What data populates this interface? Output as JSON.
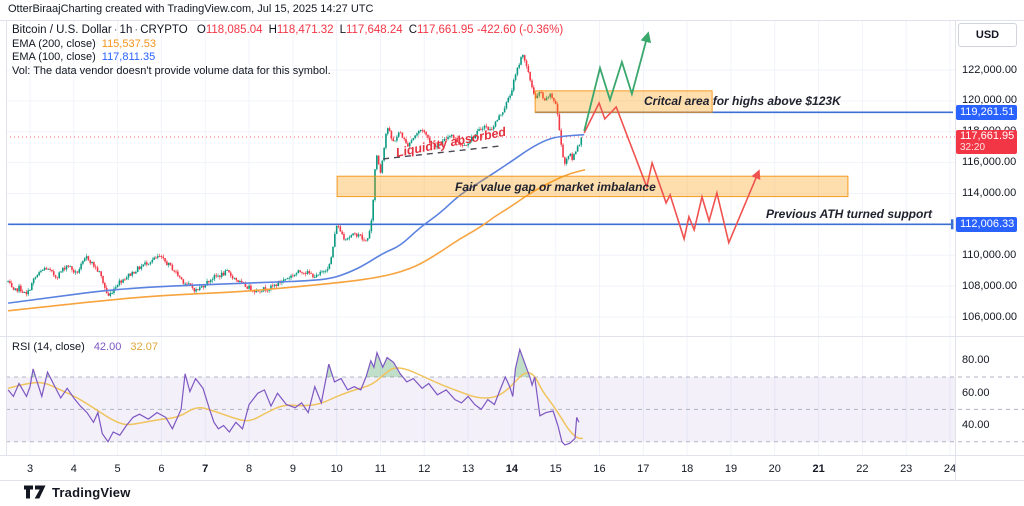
{
  "header": {
    "credit": "OtterBiraajCharting created with TradingView.com, Jul 15, 2025 14:27 UTC"
  },
  "toolbar": {
    "currency_button": "USD"
  },
  "legend": {
    "symbol": "Bitcoin / U.S. Dollar",
    "interval": "1h",
    "exchange": "CRYPTO",
    "o_label": "O",
    "o": "118,085.04",
    "h_label": "H",
    "h": "118,471.32",
    "l_label": "L",
    "l": "117,648.24",
    "c_label": "C",
    "c": "117,661.95",
    "change": "-422.60 (-0.36%)",
    "ema200_label": "EMA (200, close)",
    "ema200_value": "115,537.53",
    "ema100_label": "EMA (100, close)",
    "ema100_value": "117,811.35",
    "vol_note": "Vol: The data vendor doesn't provide volume data for this symbol."
  },
  "annotations": {
    "critical_area": "Critcal area for highs above $123K",
    "liquidity": "Liquidity absorbed",
    "fvg": "Fair value gap or market imbalance",
    "prev_ath": "Previous ATH turned support"
  },
  "price_scale": {
    "labels": [
      {
        "text": "122,000.00",
        "price": 122000
      },
      {
        "text": "120,000.00",
        "price": 120000
      },
      {
        "text": "118,000.00",
        "price": 118000
      },
      {
        "text": "116,000.00",
        "price": 116000
      },
      {
        "text": "114,000.00",
        "price": 114000
      },
      {
        "text": "112,000.00",
        "price": 112000
      },
      {
        "text": "110,000.00",
        "price": 110000
      },
      {
        "text": "108,000.00",
        "price": 108000
      },
      {
        "text": "106,000.00",
        "price": 106000
      }
    ],
    "badge_level_high": {
      "text": "119,261.51",
      "price": 119261.51
    },
    "badge_last": {
      "text": "117,661.95",
      "price": 117661.95,
      "countdown": "32:20"
    },
    "badge_level_low": {
      "text": "112,006.33",
      "price": 112006.33
    }
  },
  "rsi_panel": {
    "label": "RSI (14, close)",
    "value": "42.00",
    "ma_value": "32.07",
    "scale": [
      {
        "text": "80.00",
        "v": 80
      },
      {
        "text": "60.00",
        "v": 60
      },
      {
        "text": "40.00",
        "v": 40
      }
    ],
    "bands": [
      70,
      50,
      30
    ],
    "band_fill_range": [
      30,
      70
    ]
  },
  "time_axis": {
    "labels": [
      {
        "text": "3"
      },
      {
        "text": "4"
      },
      {
        "text": "5"
      },
      {
        "text": "6"
      },
      {
        "text": "7",
        "bold": true
      },
      {
        "text": "8"
      },
      {
        "text": "9"
      },
      {
        "text": "10"
      },
      {
        "text": "11"
      },
      {
        "text": "12"
      },
      {
        "text": "13"
      },
      {
        "text": "14",
        "bold": true
      },
      {
        "text": "15"
      },
      {
        "text": "16"
      },
      {
        "text": "17"
      },
      {
        "text": "18"
      },
      {
        "text": "19"
      },
      {
        "text": "20"
      },
      {
        "text": "21",
        "bold": true
      },
      {
        "text": "22"
      },
      {
        "text": "23"
      },
      {
        "text": "24"
      }
    ],
    "first_day": 3
  },
  "footer": {
    "brand": "TradingView"
  },
  "colors": {
    "up": "#089981",
    "down": "#f23645",
    "ema100": "#5b82e0",
    "ema200": "#f7a33e",
    "rsi": "#7e57c2",
    "rsi_ma": "#f0c35c",
    "rsi_band_fill": "rgba(126,87,194,0.09)",
    "rsi_band_line": "#b3b6c4",
    "rsi_over_fill": "rgba(76,160,100,0.35)",
    "level_blue": "#3b6fd2",
    "badge_blue": "#2962ff",
    "badge_red": "#f23645",
    "box_fill": "rgba(255,152,0,0.32)",
    "box_border": "rgba(245,146,15,0.9)",
    "proj_green": "#3aa76d",
    "proj_red": "#ef5350",
    "grid": "#f0f3fa",
    "trend_dash": "#4a4a55",
    "last_price_line": "#f23645"
  },
  "chart_data": {
    "type": "candlestick",
    "title": "Bitcoin / U.S. Dollar 1h CRYPTO",
    "x_axis": {
      "unit": "day of July 2025",
      "days": [
        3,
        4,
        5,
        6,
        7,
        8,
        9,
        10,
        11,
        12,
        13,
        14,
        15,
        16,
        17,
        18,
        19,
        20,
        21,
        22,
        23,
        24
      ]
    },
    "y_axis": {
      "unit": "USD",
      "range": [
        105200,
        123800
      ],
      "grid_step": 2000
    },
    "ohlc_last": {
      "open": 118085.04,
      "high": 118471.32,
      "low": 117648.24,
      "close": 117661.95,
      "change": -422.6,
      "change_pct": -0.36
    },
    "price_anchors": [
      [
        2.5,
        108300
      ],
      [
        2.62,
        107600
      ],
      [
        2.75,
        107900
      ],
      [
        2.92,
        107400
      ],
      [
        3.1,
        108500
      ],
      [
        3.35,
        109200
      ],
      [
        3.6,
        108600
      ],
      [
        3.85,
        109400
      ],
      [
        4.05,
        108800
      ],
      [
        4.3,
        109900
      ],
      [
        4.6,
        108800
      ],
      [
        4.78,
        107300
      ],
      [
        5.0,
        108200
      ],
      [
        5.3,
        108800
      ],
      [
        5.65,
        109500
      ],
      [
        5.95,
        109900
      ],
      [
        6.2,
        109300
      ],
      [
        6.5,
        108300
      ],
      [
        6.8,
        107700
      ],
      [
        7.15,
        108500
      ],
      [
        7.5,
        108900
      ],
      [
        7.85,
        108100
      ],
      [
        8.15,
        107700
      ],
      [
        8.5,
        107900
      ],
      [
        8.85,
        108500
      ],
      [
        9.2,
        109000
      ],
      [
        9.55,
        108600
      ],
      [
        9.85,
        109400
      ],
      [
        10.0,
        112000
      ],
      [
        10.18,
        111100
      ],
      [
        10.5,
        111400
      ],
      [
        10.65,
        110800
      ],
      [
        10.78,
        111700
      ],
      [
        10.84,
        113900
      ],
      [
        10.9,
        116700
      ],
      [
        11.0,
        115400
      ],
      [
        11.15,
        118400
      ],
      [
        11.28,
        117300
      ],
      [
        11.45,
        118000
      ],
      [
        11.6,
        117100
      ],
      [
        11.8,
        117800
      ],
      [
        11.95,
        118200
      ],
      [
        12.1,
        117500
      ],
      [
        12.3,
        117000
      ],
      [
        12.45,
        117400
      ],
      [
        12.6,
        117900
      ],
      [
        12.75,
        117400
      ],
      [
        12.9,
        117100
      ],
      [
        13.05,
        117500
      ],
      [
        13.2,
        117900
      ],
      [
        13.35,
        118400
      ],
      [
        13.5,
        118100
      ],
      [
        13.65,
        118700
      ],
      [
        13.8,
        119400
      ],
      [
        13.95,
        120300
      ],
      [
        14.05,
        121300
      ],
      [
        14.15,
        122300
      ],
      [
        14.25,
        123100
      ],
      [
        14.35,
        122000
      ],
      [
        14.45,
        121000
      ],
      [
        14.55,
        120100
      ],
      [
        14.65,
        120600
      ],
      [
        14.75,
        119900
      ],
      [
        14.85,
        120400
      ],
      [
        14.95,
        120100
      ],
      [
        15.02,
        119700
      ],
      [
        15.1,
        117600
      ],
      [
        15.2,
        115900
      ],
      [
        15.3,
        116600
      ],
      [
        15.38,
        116200
      ],
      [
        15.48,
        117000
      ],
      [
        15.58,
        117500
      ],
      [
        15.62,
        117660
      ]
    ],
    "ema100_points": [
      [
        2.5,
        106900
      ],
      [
        3.6,
        107300
      ],
      [
        4.5,
        107650
      ],
      [
        5.5,
        107900
      ],
      [
        7.0,
        108100
      ],
      [
        8.5,
        108250
      ],
      [
        9.4,
        108350
      ],
      [
        9.9,
        108500
      ],
      [
        10.3,
        108900
      ],
      [
        10.65,
        109400
      ],
      [
        11.1,
        110200
      ],
      [
        11.45,
        110600
      ],
      [
        11.9,
        111800
      ],
      [
        12.35,
        112700
      ],
      [
        12.8,
        113900
      ],
      [
        13.3,
        114800
      ],
      [
        13.95,
        116000
      ],
      [
        14.4,
        116900
      ],
      [
        14.8,
        117500
      ],
      [
        15.1,
        117700
      ],
      [
        15.65,
        117811
      ]
    ],
    "ema200_points": [
      [
        2.5,
        106400
      ],
      [
        4.6,
        107050
      ],
      [
        6.0,
        107400
      ],
      [
        7.6,
        107600
      ],
      [
        8.9,
        107900
      ],
      [
        10.3,
        108300
      ],
      [
        11.0,
        108600
      ],
      [
        11.45,
        108900
      ],
      [
        11.9,
        109400
      ],
      [
        12.36,
        110200
      ],
      [
        12.8,
        111050
      ],
      [
        13.27,
        111800
      ],
      [
        13.6,
        112500
      ],
      [
        13.95,
        113100
      ],
      [
        14.3,
        113800
      ],
      [
        14.65,
        114400
      ],
      [
        15.0,
        114900
      ],
      [
        15.33,
        115300
      ],
      [
        15.67,
        115537
      ]
    ],
    "levels": [
      {
        "name": "resistance_119261",
        "price": 119261.51,
        "day_range": [
          14.53,
          24.11
        ],
        "style": "solid"
      },
      {
        "name": "prev_ath_support_112006",
        "price": 112006.33,
        "day_range": [
          2.5,
          24.05
        ],
        "style": "solid",
        "endcap": true
      },
      {
        "name": "last_price_117661",
        "price": 117661.95,
        "day_range": [
          2.5,
          24.11
        ],
        "style": "dotted"
      }
    ],
    "boxes": [
      {
        "name": "critical_area",
        "day_range": [
          14.53,
          18.57
        ],
        "price_range": [
          119261,
          120650
        ]
      },
      {
        "name": "fair_value_gap",
        "day_range": [
          10.01,
          21.67
        ],
        "price_range": [
          113800,
          115120
        ]
      }
    ],
    "trendline_dashed": [
      [
        11.06,
        116240
      ],
      [
        13.73,
        117080
      ]
    ],
    "projection_green": [
      [
        15.65,
        118050
      ],
      [
        16.01,
        122130
      ],
      [
        16.24,
        120060
      ],
      [
        16.51,
        122520
      ],
      [
        16.74,
        120450
      ],
      [
        17.11,
        124390
      ]
    ],
    "projection_red": [
      [
        15.65,
        117920
      ],
      [
        15.99,
        119860
      ],
      [
        16.12,
        118830
      ],
      [
        16.38,
        119600
      ],
      [
        17.08,
        114430
      ],
      [
        17.2,
        115980
      ],
      [
        17.52,
        113390
      ],
      [
        17.61,
        113910
      ],
      [
        17.93,
        111060
      ],
      [
        18.04,
        112490
      ],
      [
        18.16,
        111640
      ],
      [
        18.34,
        113780
      ],
      [
        18.5,
        112230
      ],
      [
        18.68,
        114040
      ],
      [
        18.95,
        110810
      ],
      [
        19.64,
        115470
      ]
    ],
    "rsi_points": [
      [
        2.5,
        62
      ],
      [
        2.62,
        58
      ],
      [
        2.75,
        66
      ],
      [
        2.92,
        58
      ],
      [
        3.0,
        64
      ],
      [
        3.07,
        75
      ],
      [
        3.15,
        68
      ],
      [
        3.27,
        58
      ],
      [
        3.4,
        73
      ],
      [
        3.55,
        65
      ],
      [
        3.7,
        57
      ],
      [
        3.85,
        63
      ],
      [
        4.0,
        57
      ],
      [
        4.15,
        52
      ],
      [
        4.3,
        48
      ],
      [
        4.45,
        42
      ],
      [
        4.55,
        48
      ],
      [
        4.65,
        35
      ],
      [
        4.78,
        30
      ],
      [
        4.9,
        36
      ],
      [
        5.05,
        34
      ],
      [
        5.2,
        40
      ],
      [
        5.35,
        45
      ],
      [
        5.5,
        47
      ],
      [
        5.7,
        44
      ],
      [
        5.9,
        48
      ],
      [
        6.1,
        45
      ],
      [
        6.25,
        38
      ],
      [
        6.45,
        50
      ],
      [
        6.54,
        72
      ],
      [
        6.65,
        61
      ],
      [
        6.78,
        69
      ],
      [
        6.95,
        63
      ],
      [
        7.1,
        50
      ],
      [
        7.2,
        42
      ],
      [
        7.3,
        38
      ],
      [
        7.42,
        40
      ],
      [
        7.55,
        36
      ],
      [
        7.7,
        42
      ],
      [
        7.85,
        38
      ],
      [
        8.0,
        53
      ],
      [
        8.2,
        60
      ],
      [
        8.35,
        62
      ],
      [
        8.5,
        52
      ],
      [
        8.65,
        60
      ],
      [
        8.85,
        53
      ],
      [
        9.05,
        51
      ],
      [
        9.2,
        54
      ],
      [
        9.35,
        48
      ],
      [
        9.5,
        64
      ],
      [
        9.65,
        54
      ],
      [
        9.82,
        78
      ],
      [
        9.95,
        67
      ],
      [
        10.1,
        69
      ],
      [
        10.25,
        62
      ],
      [
        10.4,
        64
      ],
      [
        10.55,
        62
      ],
      [
        10.67,
        70
      ],
      [
        10.78,
        80
      ],
      [
        10.85,
        76
      ],
      [
        10.92,
        85
      ],
      [
        11.05,
        76
      ],
      [
        11.15,
        82
      ],
      [
        11.3,
        79
      ],
      [
        11.45,
        72
      ],
      [
        11.6,
        67
      ],
      [
        11.75,
        69
      ],
      [
        11.95,
        63
      ],
      [
        12.1,
        66
      ],
      [
        12.3,
        59
      ],
      [
        12.5,
        62
      ],
      [
        12.7,
        56
      ],
      [
        12.85,
        54
      ],
      [
        13.0,
        58
      ],
      [
        13.15,
        53
      ],
      [
        13.3,
        50
      ],
      [
        13.45,
        56
      ],
      [
        13.6,
        53
      ],
      [
        13.73,
        62
      ],
      [
        13.85,
        70
      ],
      [
        13.95,
        64
      ],
      [
        14.02,
        58
      ],
      [
        14.08,
        75
      ],
      [
        14.18,
        87
      ],
      [
        14.3,
        78
      ],
      [
        14.41,
        70
      ],
      [
        14.46,
        65
      ],
      [
        14.52,
        70
      ],
      [
        14.64,
        46
      ],
      [
        14.78,
        48
      ],
      [
        14.94,
        49
      ],
      [
        15.05,
        40
      ],
      [
        15.14,
        30
      ],
      [
        15.21,
        28
      ],
      [
        15.32,
        29
      ],
      [
        15.44,
        32
      ],
      [
        15.48,
        45
      ],
      [
        15.53,
        42
      ]
    ],
    "rsi_ma_points": [
      [
        2.5,
        63
      ],
      [
        2.9,
        66
      ],
      [
        3.3,
        67
      ],
      [
        3.7,
        62
      ],
      [
        4.1,
        57
      ],
      [
        4.5,
        50
      ],
      [
        4.9,
        43
      ],
      [
        5.2,
        40
      ],
      [
        5.6,
        42
      ],
      [
        6.0,
        44
      ],
      [
        6.4,
        45
      ],
      [
        6.8,
        52
      ],
      [
        7.2,
        49
      ],
      [
        7.6,
        45
      ],
      [
        8.0,
        42
      ],
      [
        8.4,
        48
      ],
      [
        8.8,
        53
      ],
      [
        9.2,
        52
      ],
      [
        9.6,
        53
      ],
      [
        10.0,
        58
      ],
      [
        10.4,
        62
      ],
      [
        10.8,
        65
      ],
      [
        11.1,
        72
      ],
      [
        11.3,
        76
      ],
      [
        11.6,
        75
      ],
      [
        12.0,
        70
      ],
      [
        12.4,
        65
      ],
      [
        12.8,
        61
      ],
      [
        13.2,
        57
      ],
      [
        13.6,
        57
      ],
      [
        13.9,
        62
      ],
      [
        14.1,
        68
      ],
      [
        14.3,
        73
      ],
      [
        14.5,
        72
      ],
      [
        14.7,
        61
      ],
      [
        14.9,
        54
      ],
      [
        15.1,
        46
      ],
      [
        15.3,
        37
      ],
      [
        15.5,
        32
      ],
      [
        15.62,
        32.07
      ]
    ]
  }
}
